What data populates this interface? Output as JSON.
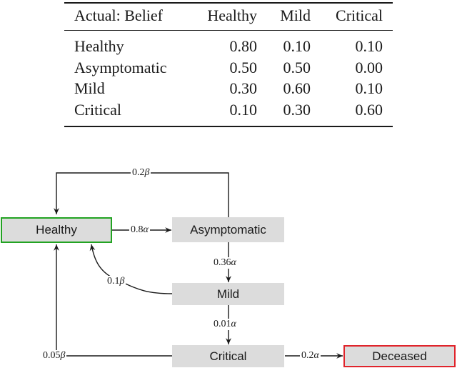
{
  "table": {
    "headers": [
      "Actual: Belief",
      "Healthy",
      "Mild",
      "Critical"
    ],
    "rows": [
      [
        "Healthy",
        "0.80",
        "0.10",
        "0.10"
      ],
      [
        "Asymptomatic",
        "0.50",
        "0.50",
        "0.00"
      ],
      [
        "Mild",
        "0.30",
        "0.60",
        "0.10"
      ],
      [
        "Critical",
        "0.10",
        "0.30",
        "0.60"
      ]
    ]
  },
  "diagram": {
    "nodes": {
      "healthy": "Healthy",
      "asymptomatic": "Asymptomatic",
      "mild": "Mild",
      "critical": "Critical",
      "deceased": "Deceased"
    },
    "edges": {
      "healthy_to_asymptomatic": {
        "coef": "0.8",
        "sym": "α"
      },
      "asymptomatic_to_healthy": {
        "coef": "0.2",
        "sym": "β"
      },
      "asymptomatic_to_mild": {
        "coef": "0.36",
        "sym": "α"
      },
      "mild_to_healthy": {
        "coef": "0.1",
        "sym": "β"
      },
      "mild_to_critical": {
        "coef": "0.01",
        "sym": "α"
      },
      "critical_to_healthy": {
        "coef": "0.05",
        "sym": "β"
      },
      "critical_to_deceased": {
        "coef": "0.2",
        "sym": "α"
      }
    },
    "colors": {
      "healthy_border": "#22a322",
      "deceased_border": "#e0242b",
      "node_fill": "#dcdcdc",
      "line": "#1a1a1a"
    }
  }
}
